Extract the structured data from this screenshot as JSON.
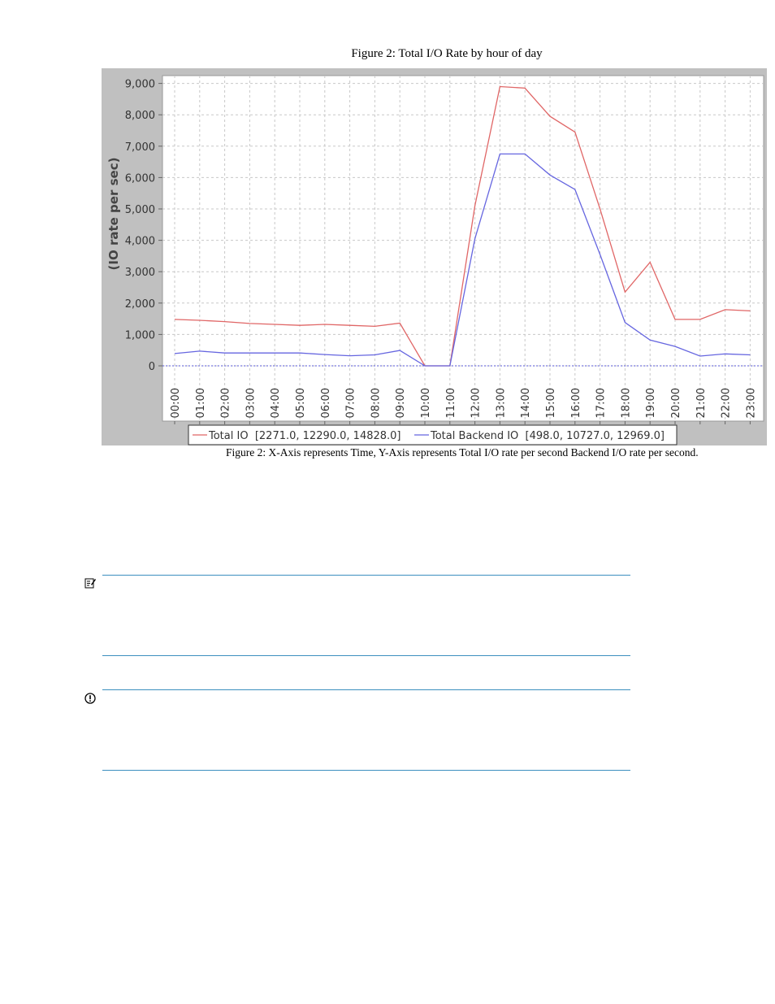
{
  "figure": {
    "title": "Figure 2: Total I/O Rate by hour of day",
    "caption": "Figure 2: X-Axis represents Time, Y-Axis represents Total I/O rate per second Backend I/O rate per second."
  },
  "callouts": [
    {
      "icon": "note-icon"
    },
    {
      "icon": "important-icon"
    }
  ],
  "chart_data": {
    "type": "line",
    "title": "",
    "xlabel": "",
    "ylabel": "(IO rate per sec)",
    "ylim": [
      0,
      9000
    ],
    "yticks": [
      "0",
      "1,000",
      "2,000",
      "3,000",
      "4,000",
      "5,000",
      "6,000",
      "7,000",
      "8,000",
      "9,000"
    ],
    "grid": true,
    "legend_position": "bottom",
    "categories": [
      "00:00",
      "01:00",
      "02:00",
      "03:00",
      "04:00",
      "05:00",
      "06:00",
      "07:00",
      "08:00",
      "09:00",
      "10:00",
      "11:00",
      "12:00",
      "13:00",
      "14:00",
      "15:00",
      "16:00",
      "17:00",
      "18:00",
      "19:00",
      "20:00",
      "21:00",
      "22:00",
      "23:00"
    ],
    "series": [
      {
        "name": "Total IO",
        "legend_label": "Total IO  [2271.0, 12290.0, 14828.0]",
        "color": "#e06666",
        "values": [
          1480,
          1450,
          1410,
          1350,
          1320,
          1290,
          1320,
          1290,
          1260,
          1360,
          0,
          0,
          5100,
          8900,
          8850,
          7950,
          7450,
          5000,
          2350,
          3300,
          1480,
          1480,
          1790,
          1750
        ]
      },
      {
        "name": "Total Backend IO",
        "legend_label": "Total Backend IO  [498.0, 10727.0, 12969.0]",
        "color": "#6666e0",
        "values": [
          390,
          470,
          410,
          410,
          410,
          410,
          360,
          320,
          350,
          490,
          0,
          0,
          4050,
          6750,
          6750,
          6080,
          5620,
          3550,
          1380,
          820,
          620,
          310,
          380,
          350
        ]
      }
    ]
  }
}
